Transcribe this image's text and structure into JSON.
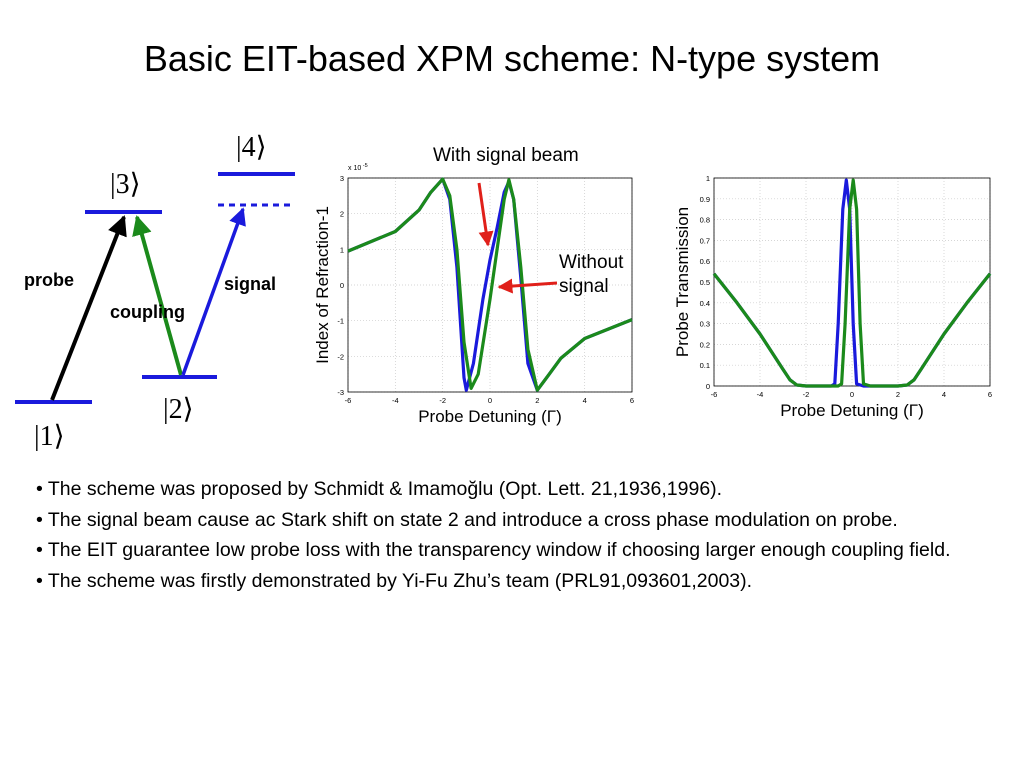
{
  "slide": {
    "title": "Basic EIT-based XPM scheme: N-type system",
    "bullets": [
      "• The scheme was proposed by Schmidt & Imamoğlu (Opt. Lett. 21,1936,1996).",
      "• The signal beam cause ac Stark shift on state 2 and introduce a cross phase modulation on probe.",
      "• The EIT guarantee low probe loss with the transparency window if choosing larger enough coupling field.",
      "• The scheme was firstly demonstrated by Yi-Fu Zhu’s team (PRL91,093601,2003)."
    ]
  },
  "level_diagram": {
    "levels": [
      "|1⟩",
      "|2⟩",
      "|3⟩",
      "|4⟩"
    ],
    "beams": [
      "probe",
      "coupling",
      "signal"
    ],
    "colors": {
      "level": "#1a1adc",
      "probe": "#000000",
      "coupling": "#1b8a1b",
      "signal": "#1a1adc"
    }
  },
  "annotations": {
    "with_signal": "With signal beam",
    "without_signal_line1": "Without",
    "without_signal_line2": "signal",
    "arrow_color": "#e0201a"
  },
  "chart_data": [
    {
      "type": "line",
      "xlabel": "Probe Detuning (Γ)",
      "ylabel": "Index of Refraction-1",
      "y_exponent_label": "x 10",
      "y_exponent": "-5",
      "xlim": [
        -6,
        6
      ],
      "ylim": [
        -3,
        3
      ],
      "x_ticks": [
        "-6",
        "-4",
        "-2",
        "0",
        "2",
        "4",
        "6"
      ],
      "y_ticks": [
        "3",
        "2",
        "1",
        "0",
        "-1",
        "-2",
        "-3"
      ],
      "series": [
        {
          "color": "#1a1adc",
          "x": [
            -6,
            -4,
            -3,
            -2.5,
            -2,
            -1.7,
            -1.4,
            -1.1,
            -1,
            -0.7,
            -0.3,
            0,
            0.3,
            0.6,
            0.8,
            1,
            1.3,
            1.6,
            2,
            2.5,
            3,
            4,
            6
          ],
          "y": [
            0.95,
            1.5,
            2.1,
            2.6,
            2.97,
            2.4,
            0.5,
            -2.6,
            -2.95,
            -2.2,
            -0.4,
            0.7,
            1.6,
            2.6,
            2.9,
            2.4,
            0.2,
            -2.2,
            -2.95,
            -2.5,
            -2.05,
            -1.5,
            -0.97
          ]
        },
        {
          "color": "#1b8a1b",
          "x": [
            -6,
            -4,
            -3,
            -2.5,
            -2,
            -1.7,
            -1.4,
            -1.1,
            -0.8,
            -0.5,
            0,
            0.3,
            0.6,
            0.8,
            1,
            1.3,
            1.6,
            2,
            2.5,
            3,
            4,
            6
          ],
          "y": [
            0.95,
            1.5,
            2.1,
            2.6,
            2.97,
            2.5,
            1,
            -1.6,
            -2.9,
            -2.5,
            -0.4,
            1,
            2.4,
            2.95,
            2.4,
            0.5,
            -1.8,
            -2.95,
            -2.5,
            -2.05,
            -1.5,
            -0.97
          ]
        }
      ]
    },
    {
      "type": "line",
      "xlabel": "Probe Detuning (Γ)",
      "ylabel": "Probe Transmission",
      "xlim": [
        -6,
        6
      ],
      "ylim": [
        0,
        1
      ],
      "x_ticks": [
        "-6",
        "-4",
        "-2",
        "0",
        "2",
        "4",
        "6"
      ],
      "y_ticks": [
        "1",
        "0.9",
        "0.8",
        "0.7",
        "0.6",
        "0.5",
        "0.4",
        "0.3",
        "0.2",
        "0.1",
        "0"
      ],
      "series": [
        {
          "color": "#1a1adc",
          "x": [
            -6,
            -5,
            -4,
            -3,
            -2.7,
            -2.4,
            -2,
            -1.5,
            -0.9,
            -0.75,
            -0.6,
            -0.4,
            -0.25,
            -0.1,
            0.05,
            0.2,
            0.5,
            1,
            1.5,
            2,
            2.4,
            2.7,
            3,
            4,
            5,
            6
          ],
          "y": [
            0.54,
            0.4,
            0.25,
            0.08,
            0.03,
            0.005,
            0,
            0,
            0,
            0.01,
            0.3,
            0.85,
            0.99,
            0.85,
            0.3,
            0.01,
            0,
            0,
            0,
            0,
            0.005,
            0.03,
            0.08,
            0.25,
            0.4,
            0.54
          ]
        },
        {
          "color": "#1b8a1b",
          "x": [
            -6,
            -5,
            -4,
            -3,
            -2.7,
            -2.4,
            -2,
            -1.5,
            -0.6,
            -0.45,
            -0.3,
            -0.1,
            0.05,
            0.2,
            0.35,
            0.5,
            0.8,
            1,
            1.5,
            2,
            2.4,
            2.7,
            3,
            4,
            5,
            6
          ],
          "y": [
            0.54,
            0.4,
            0.25,
            0.08,
            0.03,
            0.005,
            0,
            0,
            0,
            0.01,
            0.3,
            0.85,
            0.99,
            0.85,
            0.3,
            0.01,
            0,
            0,
            0,
            0,
            0.005,
            0.03,
            0.08,
            0.25,
            0.4,
            0.54
          ]
        }
      ]
    }
  ]
}
